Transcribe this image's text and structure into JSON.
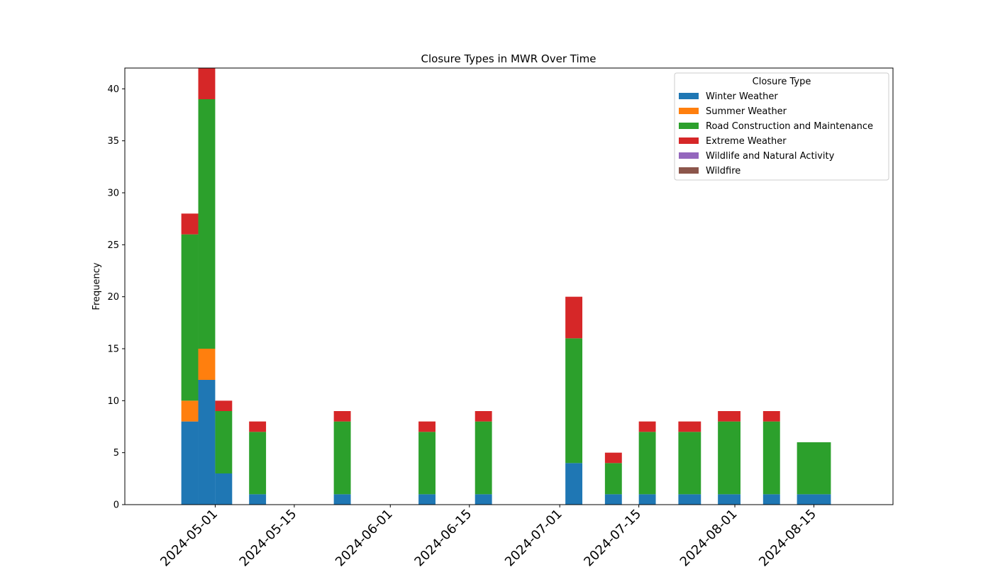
{
  "chart_data": {
    "type": "bar",
    "stacked": true,
    "title": "Closure Types in MWR Over Time",
    "xlabel": "",
    "ylabel": "Frequency",
    "ylim": [
      0,
      42
    ],
    "yticks": [
      0,
      5,
      10,
      15,
      20,
      25,
      30,
      35,
      40
    ],
    "xlim": [
      "2024-04-15",
      "2024-08-29"
    ],
    "xticks": [
      "2024-05-01",
      "2024-05-15",
      "2024-06-01",
      "2024-06-15",
      "2024-07-01",
      "2024-07-15",
      "2024-08-01",
      "2024-08-15"
    ],
    "grid": false,
    "legend": {
      "title": "Closure Type",
      "placement": "top-right"
    },
    "bars": [
      {
        "start": "2024-04-25",
        "end": "2024-04-28",
        "values": [
          8,
          2,
          16,
          2,
          0,
          0
        ]
      },
      {
        "start": "2024-04-28",
        "end": "2024-05-01",
        "values": [
          12,
          3,
          24,
          3,
          0,
          0
        ]
      },
      {
        "start": "2024-05-01",
        "end": "2024-05-04",
        "values": [
          3,
          0,
          6,
          1,
          0,
          0
        ]
      },
      {
        "start": "2024-05-07",
        "end": "2024-05-10",
        "values": [
          1,
          0,
          6,
          1,
          0,
          0
        ]
      },
      {
        "start": "2024-05-22",
        "end": "2024-05-25",
        "values": [
          1,
          0,
          7,
          1,
          0,
          0
        ]
      },
      {
        "start": "2024-06-06",
        "end": "2024-06-09",
        "values": [
          1,
          0,
          6,
          1,
          0,
          0
        ]
      },
      {
        "start": "2024-06-16",
        "end": "2024-06-19",
        "values": [
          1,
          0,
          7,
          1,
          0,
          0
        ]
      },
      {
        "start": "2024-07-02",
        "end": "2024-07-05",
        "values": [
          4,
          0,
          12,
          4,
          0,
          0
        ]
      },
      {
        "start": "2024-07-09",
        "end": "2024-07-12",
        "values": [
          1,
          0,
          3,
          1,
          0,
          0
        ]
      },
      {
        "start": "2024-07-15",
        "end": "2024-07-18",
        "values": [
          1,
          0,
          6,
          1,
          0,
          0
        ]
      },
      {
        "start": "2024-07-22",
        "end": "2024-07-26",
        "values": [
          1,
          0,
          6,
          1,
          0,
          0
        ]
      },
      {
        "start": "2024-07-29",
        "end": "2024-08-02",
        "values": [
          1,
          0,
          7,
          1,
          0,
          0
        ]
      },
      {
        "start": "2024-08-06",
        "end": "2024-08-09",
        "values": [
          1,
          0,
          7,
          1,
          0,
          0
        ]
      },
      {
        "start": "2024-08-12",
        "end": "2024-08-18",
        "values": [
          1,
          0,
          5,
          0,
          0,
          0
        ]
      }
    ],
    "series": [
      {
        "name": "Winter Weather",
        "color": "#1f77b4"
      },
      {
        "name": "Summer Weather",
        "color": "#ff7f0e"
      },
      {
        "name": "Road Construction and Maintenance",
        "color": "#2ca02c"
      },
      {
        "name": "Extreme Weather",
        "color": "#d62728"
      },
      {
        "name": "Wildlife and Natural Activity",
        "color": "#9467bd"
      },
      {
        "name": "Wildfire",
        "color": "#8c564b"
      }
    ]
  }
}
